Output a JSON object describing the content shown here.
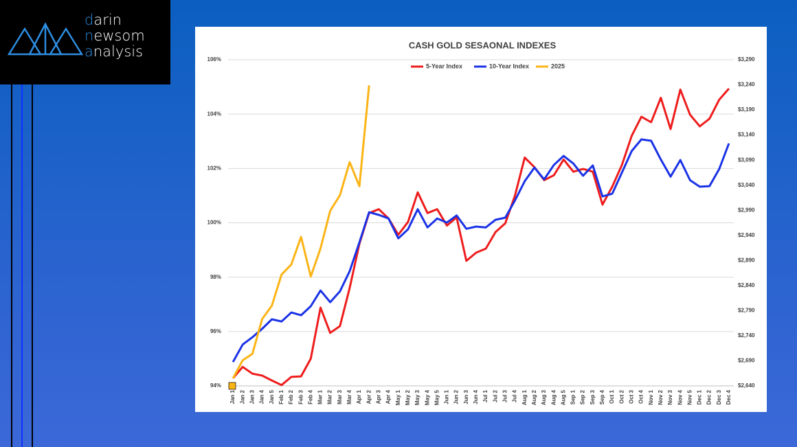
{
  "logo": {
    "lines": [
      "darin",
      "newsom",
      "analysis"
    ]
  },
  "chart_data": {
    "type": "line",
    "title": "CASH GOLD SESAONAL INDEXES",
    "categories": [
      "Jan 1",
      "Jan 2",
      "Jan 3",
      "Jan 4",
      "Jan 5",
      "Feb 1",
      "Feb 2",
      "Feb 3",
      "Feb 4",
      "Mar 1",
      "Mar 2",
      "Mar 3",
      "Mar 4",
      "Apr 1",
      "Apr 2",
      "Apr 3",
      "Apr 4",
      "May 1",
      "May 2",
      "May 3",
      "May 4",
      "May 5",
      "Jun 1",
      "Jun 2",
      "Jun 3",
      "Jun 4",
      "Jul 1",
      "Jul 2",
      "Jul 3",
      "Jul 4",
      "Aug 1",
      "Aug 2",
      "Aug 3",
      "Aug 4",
      "Aug 5",
      "Sep 1",
      "Sep 2",
      "Sep 3",
      "Sep 4",
      "Oct 1",
      "Oct 2",
      "Oct 3",
      "Oct 4",
      "Nov 1",
      "Nov 2",
      "Nov 3",
      "Nov 4",
      "Nov 5",
      "Dec 1",
      "Dec 2",
      "Dec 3",
      "Dec 4"
    ],
    "series": [
      {
        "name": "5-Year Index",
        "color": "#ee1c1c",
        "values": [
          94.28,
          94.7,
          94.45,
          94.38,
          94.2,
          94.03,
          94.33,
          94.35,
          95.0,
          96.88,
          95.95,
          96.2,
          97.6,
          99.23,
          100.36,
          100.5,
          100.16,
          99.56,
          100.03,
          101.12,
          100.36,
          100.5,
          99.9,
          100.2,
          98.6,
          98.9,
          99.05,
          99.66,
          99.98,
          101.0,
          102.4,
          102.05,
          101.57,
          101.75,
          102.33,
          101.88,
          101.98,
          101.88,
          100.67,
          101.33,
          102.13,
          103.2,
          103.9,
          103.7,
          104.6,
          103.45,
          104.9,
          103.98,
          103.55,
          103.83,
          104.53,
          104.94
        ]
      },
      {
        "name": "10-Year Index",
        "color": "#1a32e6",
        "values": [
          94.88,
          95.52,
          95.79,
          96.1,
          96.45,
          96.37,
          96.7,
          96.6,
          96.93,
          97.51,
          97.08,
          97.48,
          98.22,
          99.28,
          100.39,
          100.29,
          100.16,
          99.43,
          99.76,
          100.5,
          99.83,
          100.16,
          100.01,
          100.27,
          99.78,
          99.86,
          99.83,
          100.11,
          100.19,
          100.82,
          101.53,
          102.03,
          101.6,
          102.13,
          102.46,
          102.18,
          101.73,
          102.11,
          100.97,
          101.07,
          101.85,
          102.64,
          103.07,
          103.02,
          102.33,
          101.7,
          102.31,
          101.57,
          101.33,
          101.35,
          101.98,
          102.92
        ]
      },
      {
        "name": "2025",
        "color": "#fbb415",
        "axis": "y2",
        "values": [
          2655,
          2691,
          2704,
          2773,
          2800,
          2862,
          2882,
          2937,
          2858,
          2914,
          2989,
          3020,
          3086,
          3038,
          3239,
          null,
          null,
          null,
          null,
          null,
          null,
          null,
          null,
          null,
          null,
          null,
          null,
          null,
          null,
          null,
          null,
          null,
          null,
          null,
          null,
          null,
          null,
          null,
          null,
          null,
          null,
          null,
          null,
          null,
          null,
          null,
          null,
          null,
          null,
          null,
          null,
          null
        ]
      }
    ],
    "ylim": [
      94,
      106
    ],
    "yticks": [
      {
        "value": 94,
        "label": "94%"
      },
      {
        "value": 96,
        "label": "96%"
      },
      {
        "value": 98,
        "label": "98%"
      },
      {
        "value": 100,
        "label": "100%"
      },
      {
        "value": 102,
        "label": "102%"
      },
      {
        "value": 104,
        "label": "104%"
      },
      {
        "value": 106,
        "label": "106%"
      }
    ],
    "y2lim": [
      2640,
      3290
    ],
    "y2ticks": [
      {
        "value": 2640,
        "label": "$2,640"
      },
      {
        "value": 2690,
        "label": "$2,690"
      },
      {
        "value": 2740,
        "label": "$2,740"
      },
      {
        "value": 2790,
        "label": "$2,790"
      },
      {
        "value": 2840,
        "label": "$2,840"
      },
      {
        "value": 2890,
        "label": "$2,890"
      },
      {
        "value": 2940,
        "label": "$2,940"
      },
      {
        "value": 2990,
        "label": "$2,990"
      },
      {
        "value": 3040,
        "label": "$3,040"
      },
      {
        "value": 3090,
        "label": "$3,090"
      },
      {
        "value": 3140,
        "label": "$3,140"
      },
      {
        "value": 3190,
        "label": "$3,190"
      },
      {
        "value": 3240,
        "label": "$3,240"
      },
      {
        "value": 3290,
        "label": "$3,290"
      }
    ],
    "grid": true,
    "legend": "top"
  }
}
